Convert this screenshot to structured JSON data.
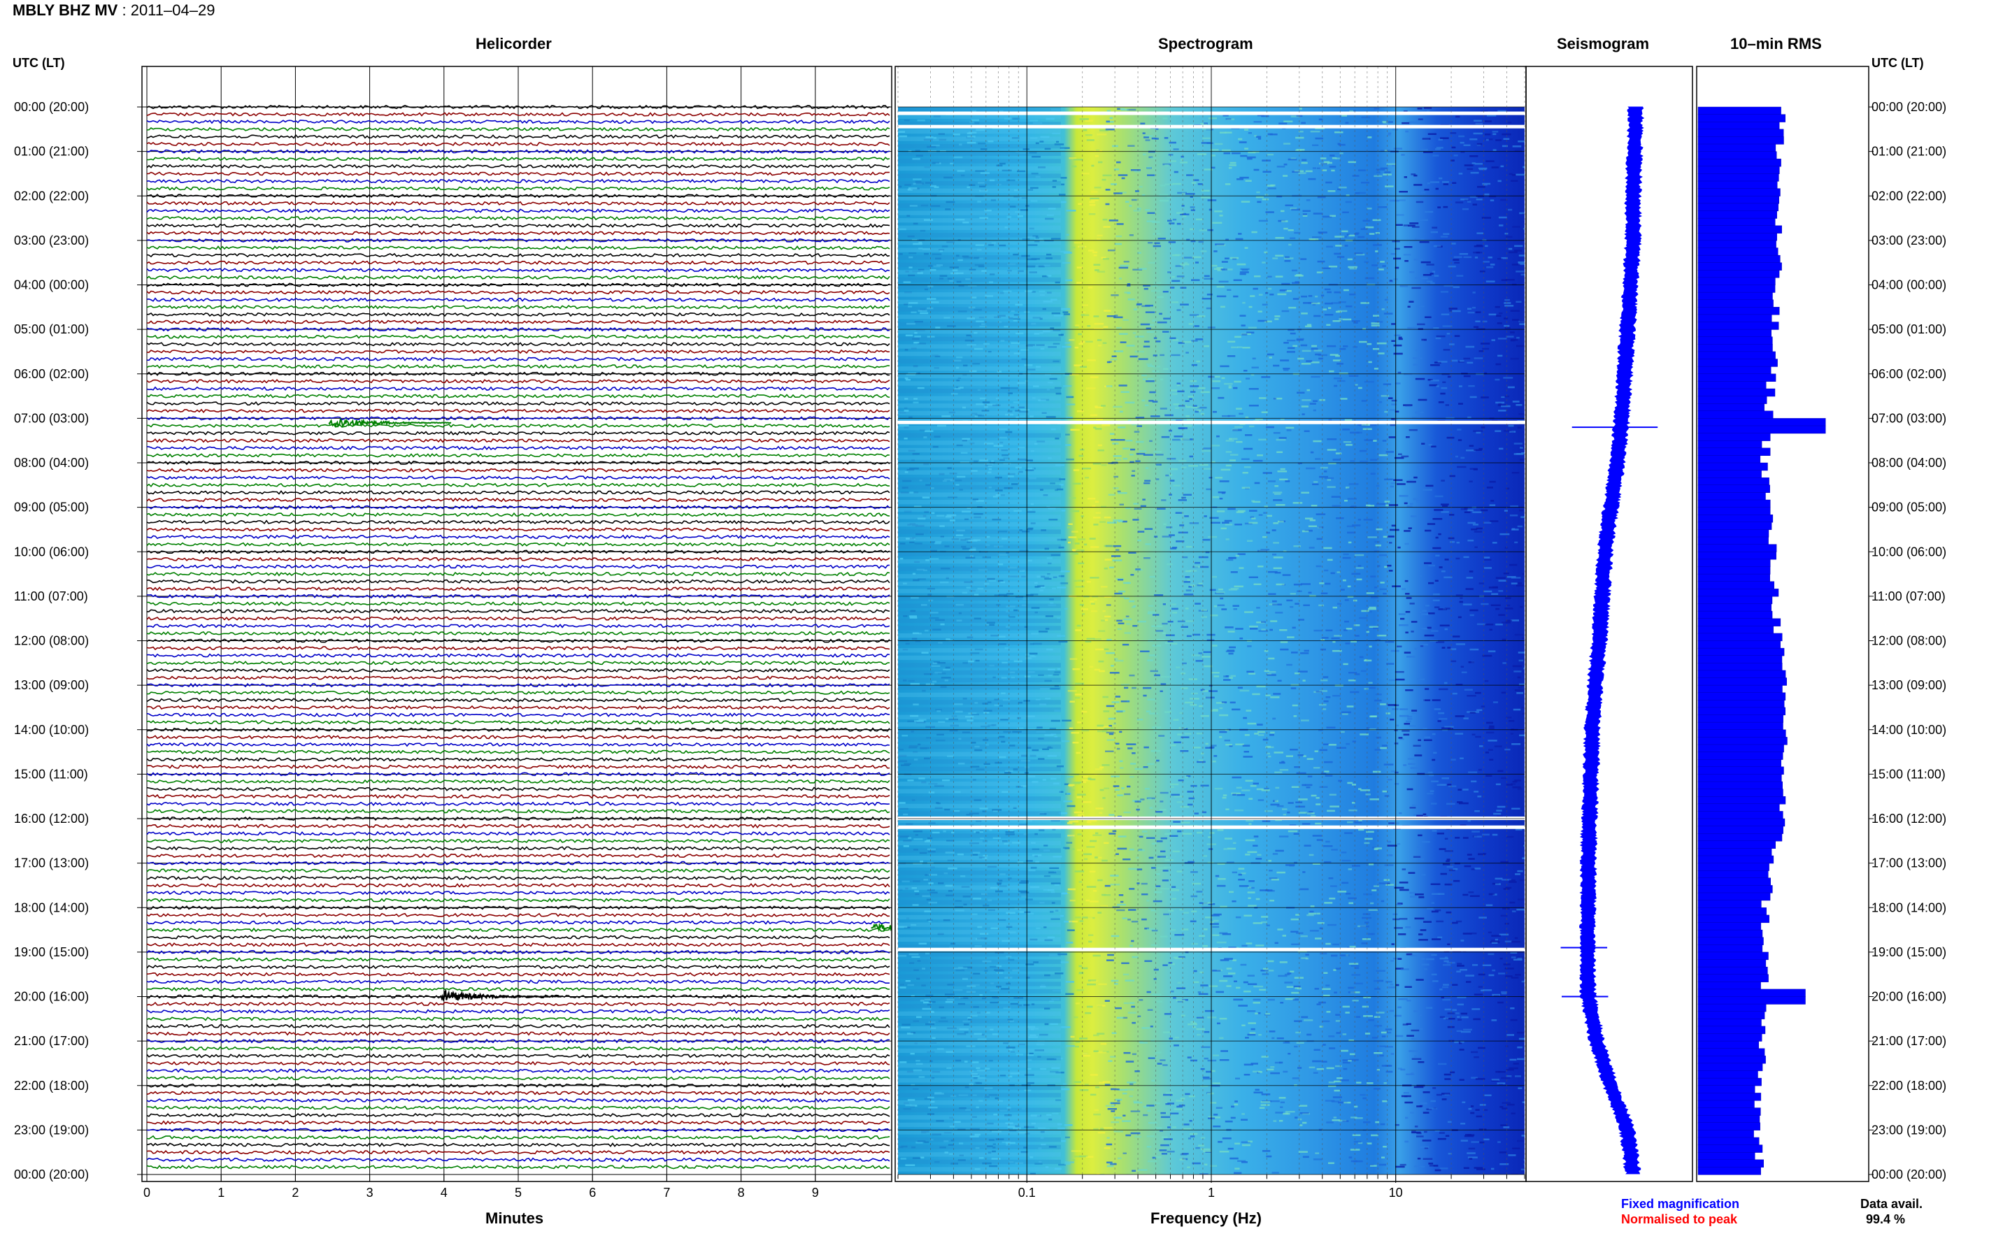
{
  "header": {
    "station": "MBLY BHZ MV",
    "date_sep": ": 2011–04–29"
  },
  "panels": {
    "helicorder": "Helicorder",
    "spectrogram": "Spectrogram",
    "seismogram": "Seismogram",
    "rms": "10–min RMS"
  },
  "axes": {
    "left_time_label": "UTC (LT)",
    "right_time_label": "UTC (LT)",
    "helicorder_xlabel": "Minutes",
    "spectrogram_xlabel": "Frequency (Hz)"
  },
  "legend": {
    "fixed": "Fixed magnification",
    "normalised": "Normalised to peak",
    "fixed_color": "#0000ff",
    "normalised_color": "#ff0000",
    "avail_label": "Data avail.",
    "avail_value": "99.4 %"
  },
  "colors": {
    "trace_cycle": [
      "#000000",
      "#8b0000",
      "#0000c8",
      "#008000"
    ],
    "seismogram": "#0000ff",
    "rms_bar": "#0000ff",
    "spectrogram_low": "#0000aa",
    "spectrogram_mid": "#33bbee",
    "spectrogram_high": "#ddee33"
  },
  "chart_data": [
    {
      "type": "helicorder",
      "title": "Helicorder",
      "xlabel": "Minutes",
      "x_ticks": [
        "0",
        "1",
        "2",
        "3",
        "4",
        "5",
        "6",
        "7",
        "8",
        "9"
      ],
      "xlim": [
        0,
        10
      ],
      "row_minutes": 10,
      "rows": 144,
      "y_ticks_utc": [
        "00:00",
        "01:00",
        "02:00",
        "03:00",
        "04:00",
        "05:00",
        "06:00",
        "07:00",
        "08:00",
        "09:00",
        "10:00",
        "11:00",
        "12:00",
        "13:00",
        "14:00",
        "15:00",
        "16:00",
        "17:00",
        "18:00",
        "19:00",
        "20:00",
        "21:00",
        "22:00",
        "23:00",
        "00:00"
      ],
      "y_ticks_lt": [
        "(20:00)",
        "(21:00)",
        "(22:00)",
        "(23:00)",
        "(00:00)",
        "(01:00)",
        "(02:00)",
        "(03:00)",
        "(04:00)",
        "(05:00)",
        "(06:00)",
        "(07:00)",
        "(08:00)",
        "(09:00)",
        "(10:00)",
        "(11:00)",
        "(12:00)",
        "(13:00)",
        "(14:00)",
        "(15:00)",
        "(16:00)",
        "(17:00)",
        "(18:00)",
        "(19:00)",
        "(20:00)"
      ],
      "events": [
        {
          "hour": 7.1,
          "minute": 2.5,
          "amplitude": 9,
          "color_index": 3
        },
        {
          "hour": 18.45,
          "minute": 9.8,
          "amplitude": 6,
          "color_index": 3
        },
        {
          "hour": 20.0,
          "minute": 4.0,
          "amplitude": 10,
          "color_index": 0
        }
      ]
    },
    {
      "type": "heatmap",
      "title": "Spectrogram",
      "xlabel": "Frequency (Hz)",
      "x_scale": "log",
      "xlim": [
        0.02,
        50
      ],
      "x_ticks": [
        "0.1",
        "1",
        "10"
      ],
      "gaps_hours": [
        0.15,
        0.45,
        7.1,
        16.0,
        16.2,
        18.95
      ]
    },
    {
      "type": "line",
      "title": "Seismogram",
      "series": [
        {
          "name": "Fixed magnification",
          "hours": [
            0,
            1,
            2,
            3,
            4,
            5,
            6,
            7,
            8,
            9,
            10,
            11,
            12,
            13,
            14,
            15,
            16,
            17,
            18,
            19,
            20,
            21,
            22,
            23,
            24
          ],
          "offset": [
            0.35,
            0.33,
            0.3,
            0.3,
            0.25,
            0.2,
            0.15,
            0.1,
            0.02,
            -0.1,
            -0.2,
            -0.25,
            -0.3,
            -0.38,
            -0.43,
            -0.45,
            -0.48,
            -0.5,
            -0.5,
            -0.52,
            -0.5,
            -0.35,
            -0.1,
            0.2,
            0.3
          ]
        }
      ],
      "spikes_hours": [
        7.2,
        18.9,
        20.0
      ]
    },
    {
      "type": "bar",
      "title": "10–min RMS",
      "orientation": "horizontal",
      "bins_per_hour": 6,
      "level_hours": [
        0,
        2,
        4,
        6,
        8,
        10,
        12,
        14,
        16,
        18,
        20,
        22,
        24
      ],
      "levels": [
        0.62,
        0.6,
        0.58,
        0.55,
        0.5,
        0.55,
        0.6,
        0.65,
        0.62,
        0.5,
        0.5,
        0.45,
        0.45
      ],
      "spikes": [
        {
          "hour": 7.2,
          "level": 0.95
        },
        {
          "hour": 20.0,
          "level": 0.8
        }
      ]
    }
  ]
}
